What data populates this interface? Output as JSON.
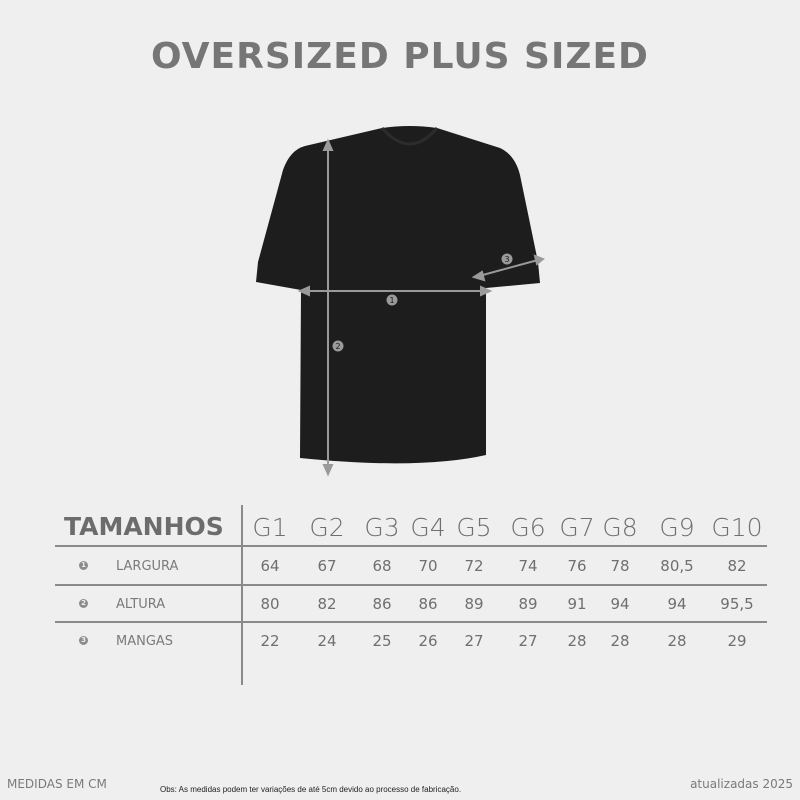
{
  "title": "OVERSIZED PLUS SIZED",
  "markers": {
    "width": "1",
    "height": "2",
    "sleeve": "3"
  },
  "table": {
    "header": "TAMANHOS",
    "sizes": [
      "G1",
      "G2",
      "G3",
      "G4",
      "G5",
      "G6",
      "G7",
      "G8",
      "G9",
      "G10"
    ],
    "rows": [
      {
        "badge": "1",
        "label": "LARGURA",
        "values": [
          "64",
          "67",
          "68",
          "70",
          "72",
          "74",
          "76",
          "78",
          "80,5",
          "82"
        ]
      },
      {
        "badge": "2",
        "label": "ALTURA",
        "values": [
          "80",
          "82",
          "86",
          "86",
          "89",
          "89",
          "91",
          "94",
          "94",
          "95,5"
        ]
      },
      {
        "badge": "3",
        "label": "MANGAS",
        "values": [
          "22",
          "24",
          "25",
          "26",
          "27",
          "27",
          "28",
          "28",
          "28",
          "29"
        ]
      }
    ]
  },
  "footer": {
    "units": "MEDIDAS EM CM",
    "note": "Obs: As medidas podem ter variações de até 5cm devido ao processo de fabricação.",
    "updated": "atualizadas 2025"
  },
  "colors": {
    "background": "#efefef",
    "shirt": "#1c1c1c",
    "text": "#767676"
  }
}
